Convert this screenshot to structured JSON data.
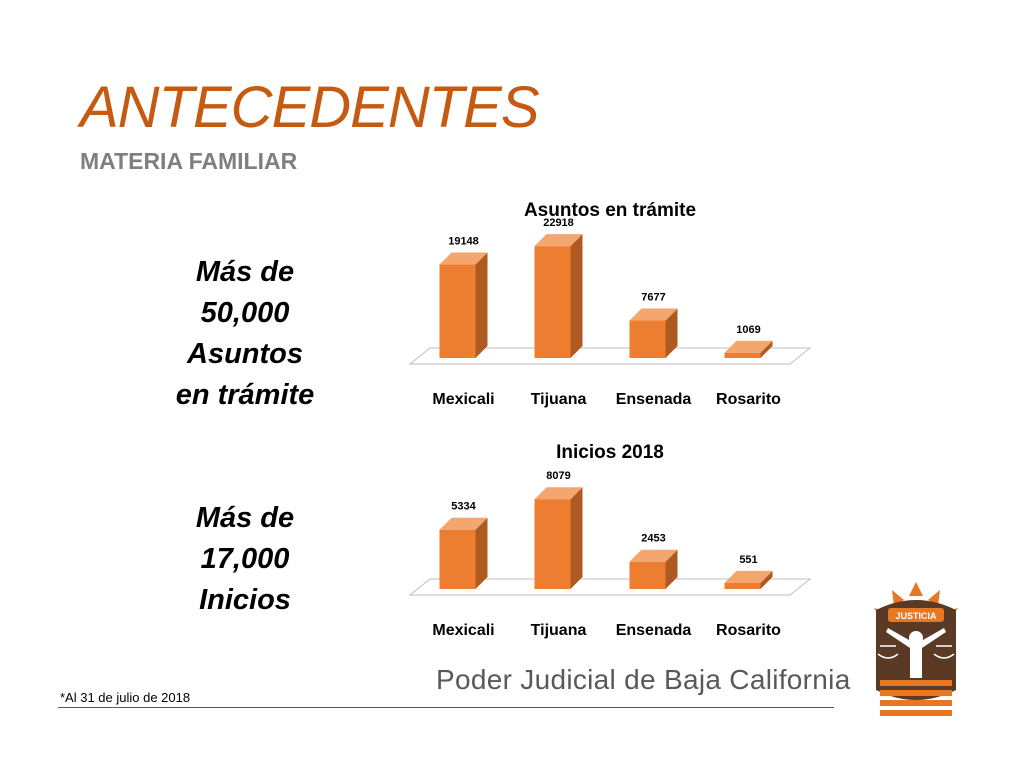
{
  "header": {
    "title": "ANTECEDENTES",
    "subtitle": "MATERIA FAMILIAR"
  },
  "callouts": {
    "asuntos": [
      "Más de",
      "50,000",
      "Asuntos",
      "en trámite"
    ],
    "inicios": [
      "Más de",
      "17,000",
      "Inicios"
    ]
  },
  "chart_data": [
    {
      "type": "bar",
      "title": "Asuntos en trámite",
      "categories": [
        "Mexicali",
        "Tijuana",
        "Ensenada",
        "Rosarito"
      ],
      "values": [
        19148,
        22918,
        7677,
        1069
      ],
      "xlabel": "",
      "ylabel": "",
      "ylim": [
        0,
        25000
      ],
      "grid": false,
      "bar_color": "#ed7d31",
      "bar_side_color": "#ae5a21",
      "bar_top_color": "#f4a66f"
    },
    {
      "type": "bar",
      "title": "Inicios 2018",
      "categories": [
        "Mexicali",
        "Tijuana",
        "Ensenada",
        "Rosarito"
      ],
      "values": [
        5334,
        8079,
        2453,
        551
      ],
      "xlabel": "",
      "ylabel": "",
      "ylim": [
        0,
        9000
      ],
      "grid": false,
      "bar_color": "#ed7d31",
      "bar_side_color": "#ae5a21",
      "bar_top_color": "#f4a66f"
    }
  ],
  "footer": {
    "institution": "Poder Judicial de Baja California",
    "note": "*Al 31 de julio de 2018",
    "logo_text": "JUSTICIA"
  },
  "colors": {
    "accent": "#c55a11",
    "subtitle": "#7f7f7f",
    "footer_text": "#595959"
  }
}
